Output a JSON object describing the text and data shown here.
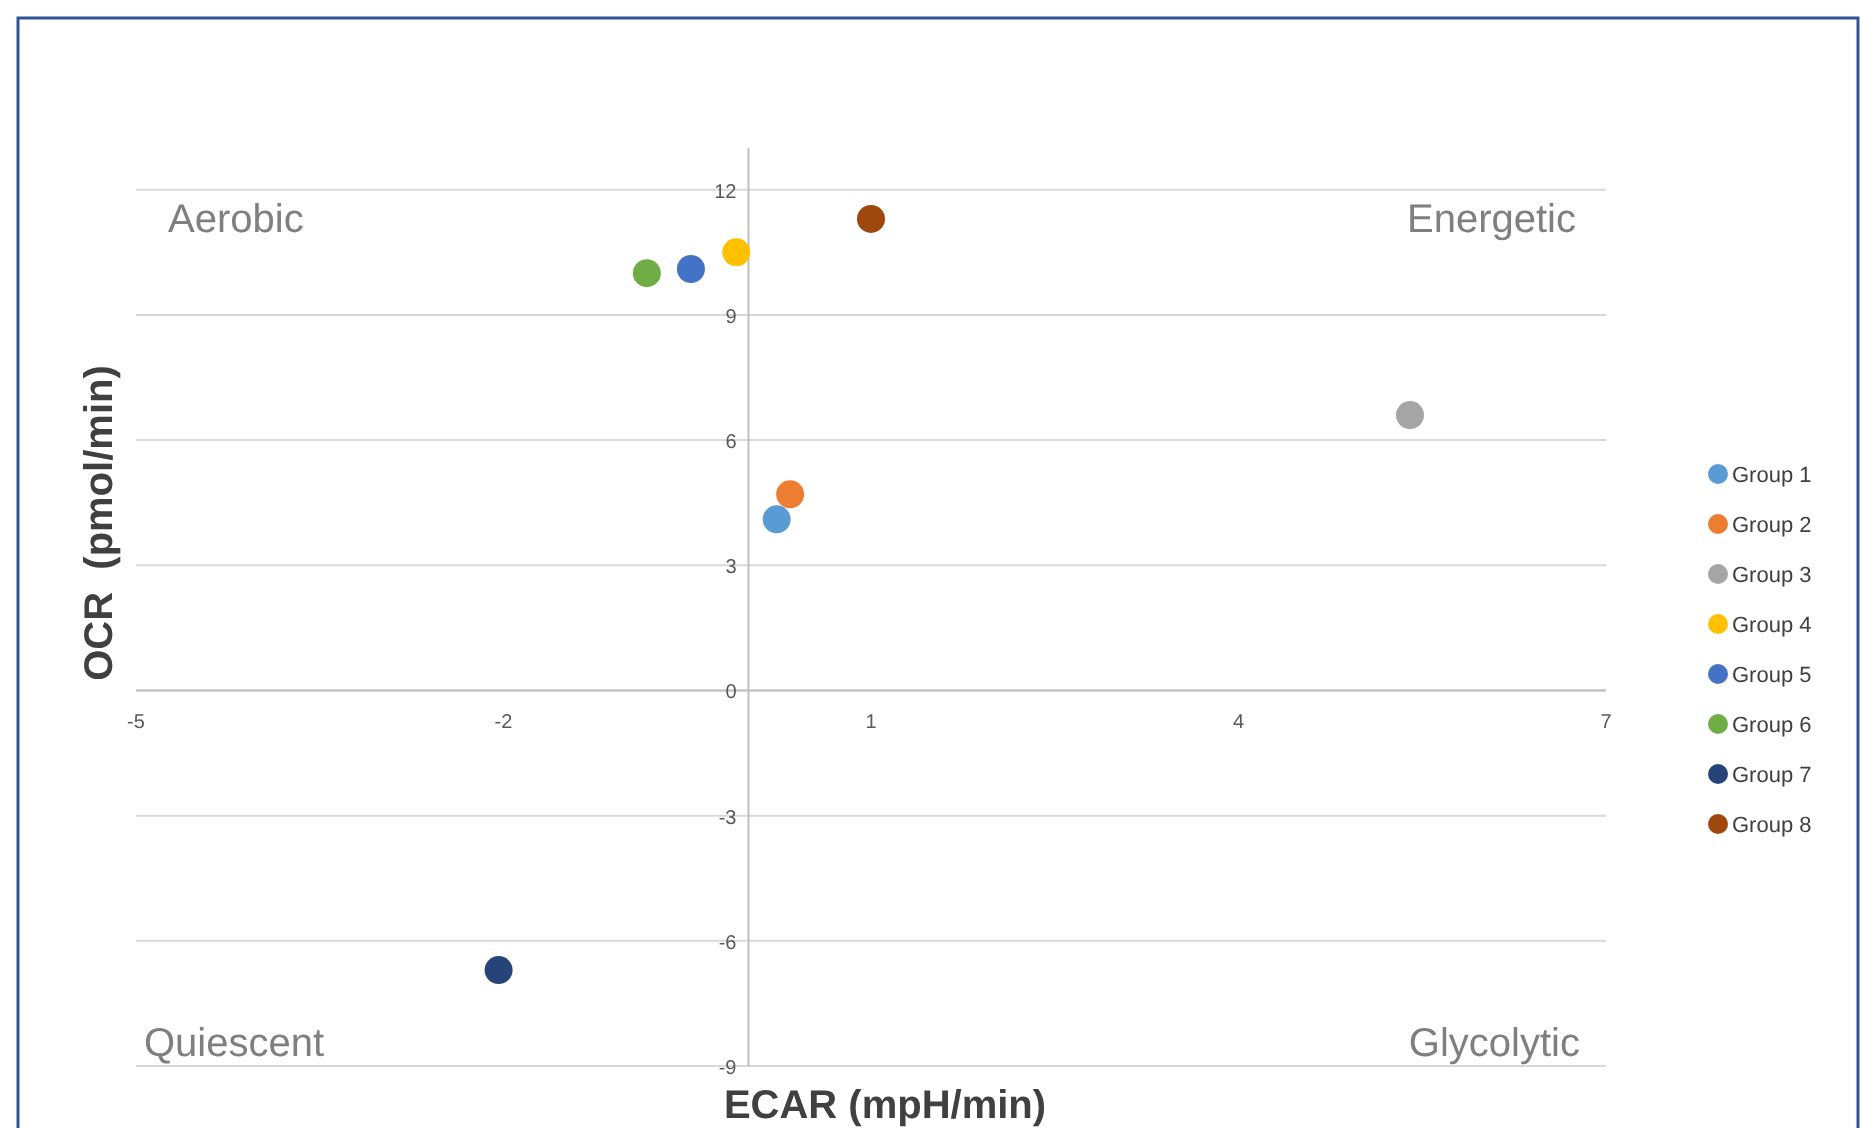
{
  "chart_data": {
    "type": "scatter",
    "xlabel": "ECAR (mpH/min)",
    "ylabel": "OCR  (pmol/min)",
    "xlim": [
      -5,
      7
    ],
    "xticks": [
      -5,
      -2,
      1,
      4,
      7
    ],
    "ylim": [
      -9,
      13
    ],
    "yticks": [
      -9,
      -6,
      -3,
      0,
      3,
      6,
      9,
      12
    ],
    "grid": "y",
    "legend": "right",
    "marker": "circle",
    "annotations": [
      "Aerobic",
      "Energetic",
      "Quiescent",
      "Glycolytic"
    ],
    "series": [
      {
        "name": "Group 1",
        "color": "#5b9bd5",
        "x": [
          0.23
        ],
        "values": [
          4.1
        ]
      },
      {
        "name": "Group 2",
        "color": "#ed7d31",
        "x": [
          0.34
        ],
        "values": [
          4.7
        ]
      },
      {
        "name": "Group 3",
        "color": "#a5a5a5",
        "x": [
          5.4
        ],
        "values": [
          6.6
        ]
      },
      {
        "name": "Group 4",
        "color": "#ffc000",
        "x": [
          -0.1
        ],
        "values": [
          10.5
        ]
      },
      {
        "name": "Group 5",
        "color": "#4472c4",
        "x": [
          -0.47
        ],
        "values": [
          10.1
        ]
      },
      {
        "name": "Group 6",
        "color": "#70ad47",
        "x": [
          -0.83
        ],
        "values": [
          10.0
        ]
      },
      {
        "name": "Group 7",
        "color": "#264478",
        "x": [
          -2.04
        ],
        "values": [
          -6.7
        ]
      },
      {
        "name": "Group 8",
        "color": "#9e480e",
        "x": [
          1.0
        ],
        "values": [
          11.3
        ]
      }
    ]
  }
}
